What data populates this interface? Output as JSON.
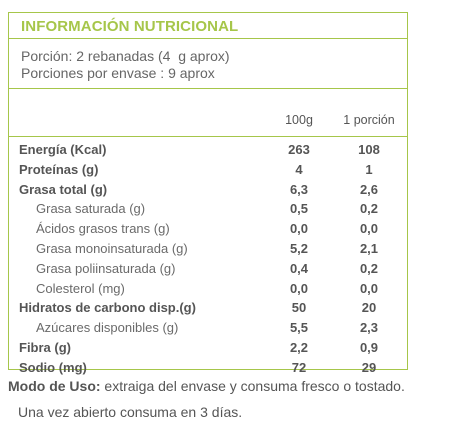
{
  "label": {
    "title": "INFORMACIÓN NUTRICIONAL",
    "serving_size": "Porción: 2 rebanadas (4  g aprox)",
    "servings_per_container": "Porciones por envase : 9 aprox",
    "col_100g": "100g",
    "col_portion": "1 porción",
    "rows": [
      {
        "name": "Energía (Kcal)",
        "v100": "263",
        "vpor": "108",
        "bold": true
      },
      {
        "name": "Proteínas  (g)",
        "v100": "4",
        "vpor": "1",
        "bold": true
      },
      {
        "name": "Grasa total (g)",
        "v100": "6,3",
        "vpor": "2,6",
        "bold": true
      },
      {
        "name": "Grasa saturada (g)",
        "v100": "0,5",
        "vpor": "0,2",
        "bold": false
      },
      {
        "name": "Ácidos grasos trans (g)",
        "v100": "0,0",
        "vpor": "0,0",
        "bold": false
      },
      {
        "name": "Grasa monoinsaturada (g)",
        "v100": "5,2",
        "vpor": "2,1",
        "bold": false
      },
      {
        "name": "Grasa poliinsaturada (g)",
        "v100": "0,4",
        "vpor": "0,2",
        "bold": false
      },
      {
        "name": "Colesterol (mg)",
        "v100": "0,0",
        "vpor": "0,0",
        "bold": false
      },
      {
        "name": "Hidratos de carbono disp.(g)",
        "v100": "50",
        "vpor": "20",
        "bold": true
      },
      {
        "name": "Azúcares disponibles (g)",
        "v100": "5,5",
        "vpor": "2,3",
        "bold": false
      },
      {
        "name": "Fibra (g)",
        "v100": "2,2",
        "vpor": "0,9",
        "bold": true
      },
      {
        "name": "Sodio (mg)",
        "v100": "72",
        "vpor": "29",
        "bold": true
      }
    ]
  },
  "usage": {
    "label": "Modo de Uso:",
    "text": " extraiga del envase y consuma fresco o tostado.",
    "note": "Una vez abierto consuma en 3 días."
  },
  "colors": {
    "accent": "#a6c64a",
    "text": "#5a5a5a"
  }
}
